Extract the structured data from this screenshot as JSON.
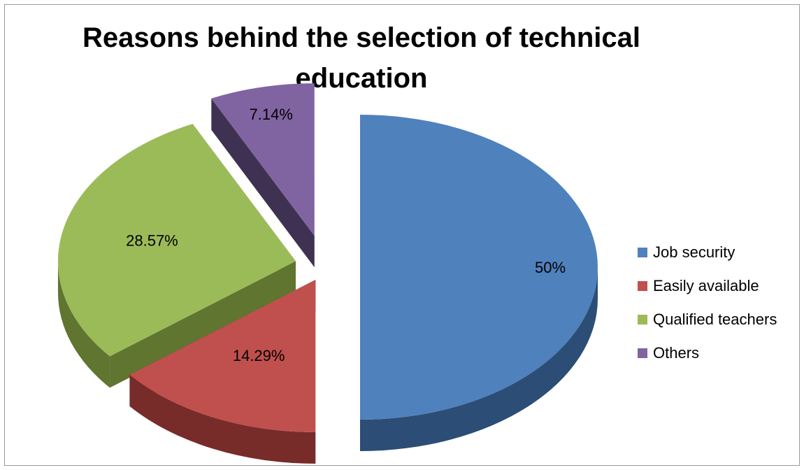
{
  "chart_data": {
    "type": "pie",
    "title": "Reasons behind the selection of technical education",
    "categories": [
      "Job security",
      "Easily available",
      "Qualified teachers",
      "Others"
    ],
    "values": [
      50,
      14.29,
      28.57,
      7.14
    ],
    "data_labels": [
      "50%",
      "14.29%",
      "28.57%",
      "7.14%"
    ],
    "colors": [
      "#4F81BD",
      "#C0504D",
      "#9BBB59",
      "#8064A2"
    ],
    "side_colors": [
      "#2C4D75",
      "#772C2A",
      "#5F7530",
      "#3F3151"
    ],
    "style": "3d-exploded",
    "legend": "right"
  }
}
